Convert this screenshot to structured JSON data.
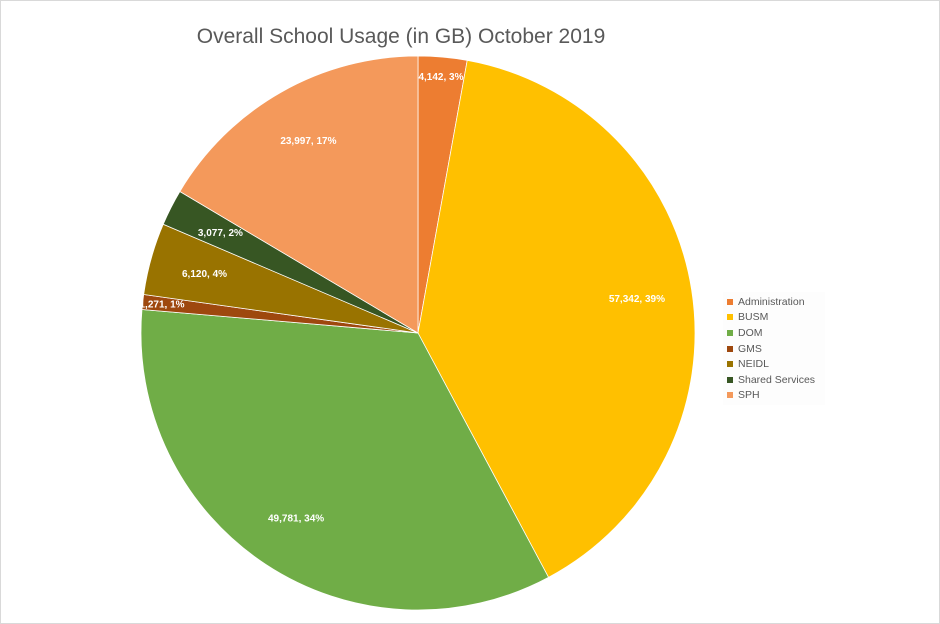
{
  "chart_data": {
    "type": "pie",
    "title": "Overall School Usage (in GB) October 2019",
    "legend_position": "right",
    "slices": [
      {
        "name": "Administration",
        "value": 4142,
        "percent": 3,
        "label": "4,142, 3%",
        "color": "#ed7d31"
      },
      {
        "name": "BUSM",
        "value": 57342,
        "percent": 39,
        "label": "57,342, 39%",
        "color": "#ffc000"
      },
      {
        "name": "DOM",
        "value": 49781,
        "percent": 34,
        "label": "49,781, 34%",
        "color": "#70ad47"
      },
      {
        "name": "GMS",
        "value": 1271,
        "percent": 1,
        "label": "1,271, 1%",
        "color": "#9e480e"
      },
      {
        "name": "NEIDL",
        "value": 6120,
        "percent": 4,
        "label": "6,120, 4%",
        "color": "#997300"
      },
      {
        "name": "Shared Services",
        "value": 3077,
        "percent": 2,
        "label": "3,077, 2%",
        "color": "#375623"
      },
      {
        "name": "SPH",
        "value": 23997,
        "percent": 17,
        "label": "23,997, 17%",
        "color": "#f4995b"
      }
    ]
  }
}
